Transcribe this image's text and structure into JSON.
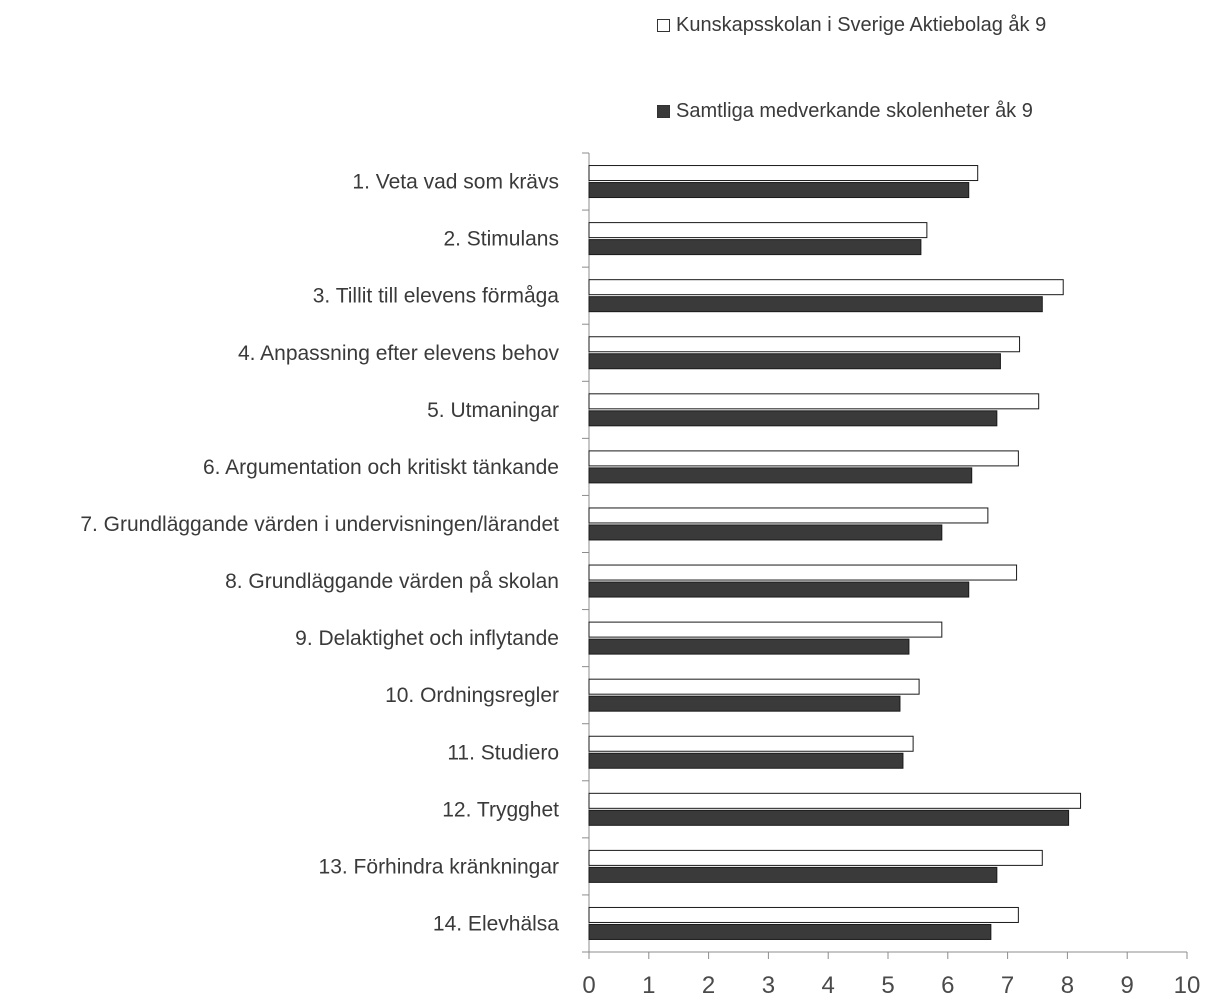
{
  "chart_data": {
    "type": "bar",
    "orientation": "horizontal",
    "categories": [
      "1. Veta vad som krävs",
      "2. Stimulans",
      "3. Tillit till elevens förmåga",
      "4. Anpassning efter elevens behov",
      "5. Utmaningar",
      "6. Argumentation och kritiskt tänkande",
      "7. Grundläggande värden i undervisningen/lärandet",
      "8. Grundläggande värden på skolan",
      "9. Delaktighet och inflytande",
      "10. Ordningsregler",
      "11. Studiero",
      "12. Trygghet",
      "13. Förhindra kränkningar",
      "14. Elevhälsa"
    ],
    "series": [
      {
        "name": "Kunskapsskolan i Sverige Aktiebolag åk 9",
        "color": "#ffffff",
        "values": [
          6.5,
          5.65,
          7.93,
          7.2,
          7.52,
          7.18,
          6.67,
          7.15,
          5.9,
          5.52,
          5.42,
          8.22,
          7.58,
          7.18
        ]
      },
      {
        "name": "Samtliga medverkande skolenheter åk 9",
        "color": "#3a3a3a",
        "values": [
          6.35,
          5.55,
          7.58,
          6.88,
          6.82,
          6.4,
          5.9,
          6.35,
          5.35,
          5.2,
          5.25,
          8.02,
          6.82,
          6.72
        ]
      }
    ],
    "xlim": [
      0,
      10
    ],
    "xticks": [
      "0",
      "1",
      "2",
      "3",
      "4",
      "5",
      "6",
      "7",
      "8",
      "9",
      "10"
    ],
    "xlabel": "",
    "ylabel": "",
    "grid": false,
    "legend_position": "top-right"
  }
}
